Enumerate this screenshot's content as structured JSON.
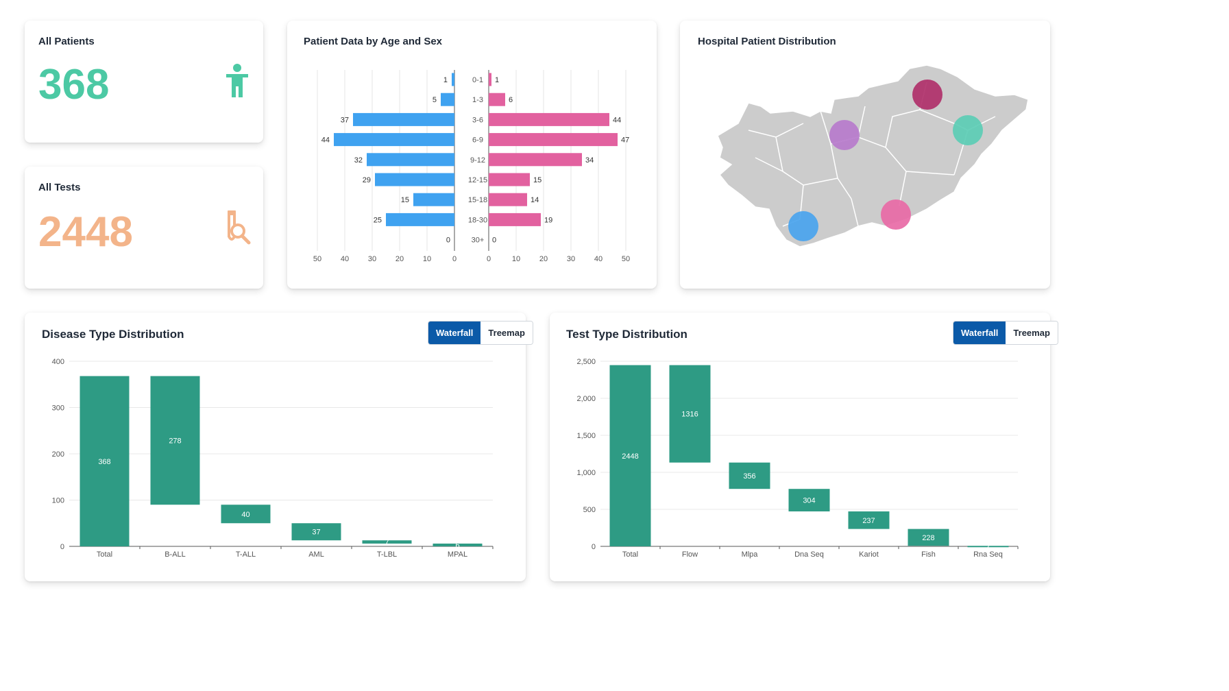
{
  "cards": {
    "patients": {
      "title": "All Patients",
      "value": "368",
      "color": "#4cc9a4"
    },
    "tests": {
      "title": "All Tests",
      "value": "2448",
      "color": "#f3b48a"
    }
  },
  "pyramid": {
    "title": "Patient Data by Age and Sex"
  },
  "map": {
    "title": "Hospital Patient Distribution",
    "markers": [
      {
        "color": "#b0306a",
        "name": "north-east"
      },
      {
        "color": "#b77bcc",
        "name": "central"
      },
      {
        "color": "#5ccdb5",
        "name": "east"
      },
      {
        "color": "#e86aa6",
        "name": "south-east"
      },
      {
        "color": "#4aa4ee",
        "name": "south-west"
      }
    ]
  },
  "disease": {
    "title": "Disease Type Distribution",
    "toggle": {
      "active": "Waterfall",
      "inactive": "Treemap"
    }
  },
  "test": {
    "title": "Test Type Distribution",
    "toggle": {
      "active": "Waterfall",
      "inactive": "Treemap"
    }
  },
  "chart_data": [
    {
      "type": "bar",
      "orientation": "horizontal-pyramid",
      "title": "Patient Data by Age and Sex",
      "categories": [
        "0-1",
        "1-3",
        "3-6",
        "6-9",
        "9-12",
        "12-15",
        "15-18",
        "18-30",
        "30+"
      ],
      "series": [
        {
          "values": [
            1,
            5,
            37,
            44,
            32,
            29,
            15,
            25,
            0
          ],
          "color": "#3fa2f0"
        },
        {
          "values": [
            1,
            6,
            44,
            47,
            34,
            15,
            14,
            19,
            0
          ],
          "color": "#e2619f"
        }
      ],
      "xlim": [
        0,
        50
      ],
      "ticks": [
        "50",
        "40",
        "30",
        "20",
        "10",
        "0"
      ],
      "ticks_right": [
        "0",
        "10",
        "20",
        "30",
        "40",
        "50"
      ]
    },
    {
      "type": "bar",
      "variant": "waterfall",
      "title": "Disease Type Distribution",
      "categories": [
        "Total",
        "B-ALL",
        "T-ALL",
        "AML",
        "T-LBL",
        "MPAL"
      ],
      "values": [
        368,
        278,
        40,
        37,
        7,
        6
      ],
      "ylim": [
        0,
        400
      ],
      "yticks": [
        "0",
        "100",
        "200",
        "300",
        "400"
      ],
      "color": "#2e9b84"
    },
    {
      "type": "bar",
      "variant": "waterfall",
      "title": "Test Type Distribution",
      "categories": [
        "Total",
        "Flow",
        "Mlpa",
        "Dna Seq",
        "Kariot",
        "Fish",
        "Rna Seq"
      ],
      "values": [
        2448,
        1316,
        356,
        304,
        237,
        228,
        7
      ],
      "ylim": [
        0,
        2500
      ],
      "yticks": [
        "0",
        "500",
        "1,000",
        "1,500",
        "2,000",
        "2,500"
      ],
      "color": "#2e9b84"
    }
  ]
}
